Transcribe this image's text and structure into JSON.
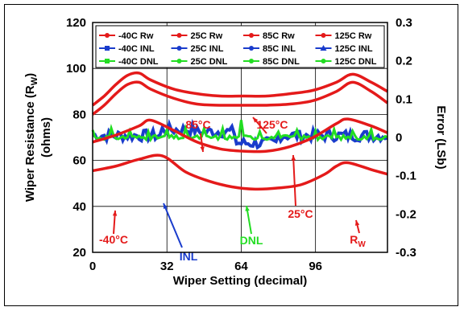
{
  "chart_data": {
    "type": "line",
    "xlabel": "Wiper Setting (decimal)",
    "ylabel_left": "Wiper Resistance (Rw) (ohms)",
    "ylabel_left_main": "Wiper Resistance (R",
    "ylabel_left_sub": "W",
    "ylabel_left_close": ")",
    "ylabel_left_line2": "(ohms)",
    "ylabel_right": "Error (LSb)",
    "xlim": [
      0,
      127
    ],
    "ylim_left": [
      20,
      120
    ],
    "ylim_right": [
      -0.3,
      0.3
    ],
    "x_ticks": [
      0,
      32,
      64,
      96
    ],
    "y_ticks_left": [
      20,
      40,
      60,
      80,
      100,
      120
    ],
    "y_ticks_right": [
      "-0.3",
      "-0.2",
      "-0.1",
      "0",
      "0.1",
      "0.2",
      "0.3"
    ],
    "grid": true,
    "legend_position": "top",
    "legend": [
      {
        "label": "-40C Rw",
        "color": "#e41a1a",
        "marker": "circle"
      },
      {
        "label": "25C Rw",
        "color": "#e41a1a",
        "marker": "circle"
      },
      {
        "label": "85C Rw",
        "color": "#e41a1a",
        "marker": "circle"
      },
      {
        "label": "125C Rw",
        "color": "#e41a1a",
        "marker": "circle"
      },
      {
        "label": "-40C INL",
        "color": "#1a3ccc",
        "marker": "square"
      },
      {
        "label": "25C INL",
        "color": "#1a3ccc",
        "marker": "circle"
      },
      {
        "label": "85C INL",
        "color": "#1a3ccc",
        "marker": "circle"
      },
      {
        "label": "125C INL",
        "color": "#1a3ccc",
        "marker": "triangle"
      },
      {
        "label": "-40C DNL",
        "color": "#22dd22",
        "marker": "square"
      },
      {
        "label": "25C DNL",
        "color": "#22dd22",
        "marker": "circle"
      },
      {
        "label": "85C DNL",
        "color": "#22dd22",
        "marker": "circle"
      },
      {
        "label": "125C DNL",
        "color": "#22dd22",
        "marker": "circle"
      }
    ],
    "series_rw": [
      {
        "name": "-40C Rw",
        "x": [
          0,
          10,
          20,
          30,
          40,
          50,
          60,
          70,
          80,
          90,
          100,
          105,
          110,
          120,
          127
        ],
        "y": [
          55.5,
          57.5,
          60.5,
          62,
          55,
          51,
          48.5,
          47.5,
          48,
          49.5,
          54,
          57.5,
          59,
          56,
          54
        ]
      },
      {
        "name": "25C Rw",
        "x": [
          0,
          10,
          20,
          25,
          35,
          45,
          55,
          65,
          75,
          85,
          95,
          105,
          110,
          120,
          127
        ],
        "y": [
          68,
          71,
          75,
          77.5,
          73,
          68,
          65,
          64,
          64,
          66,
          70,
          76,
          78,
          75,
          72
        ]
      },
      {
        "name": "85C Rw",
        "x": [
          0,
          5,
          10,
          15,
          20,
          25,
          35,
          45,
          55,
          65,
          75,
          85,
          95,
          105,
          112,
          120,
          127
        ],
        "y": [
          80,
          84,
          89,
          93,
          94,
          91,
          87,
          84.5,
          84,
          84,
          84,
          84.5,
          86,
          90,
          94,
          90,
          85
        ]
      },
      {
        "name": "125C Rw",
        "x": [
          0,
          5,
          10,
          15,
          20,
          25,
          35,
          45,
          55,
          65,
          75,
          85,
          95,
          105,
          112,
          120,
          127
        ],
        "y": [
          84,
          88,
          93,
          97,
          98,
          95,
          91,
          89,
          88,
          88,
          88,
          89,
          90.5,
          94,
          97.5,
          94,
          90
        ]
      }
    ],
    "annotations": [
      "85°C",
      "125°C",
      "-40°C",
      "INL",
      "DNL",
      "25°C",
      "R",
      "W"
    ]
  }
}
